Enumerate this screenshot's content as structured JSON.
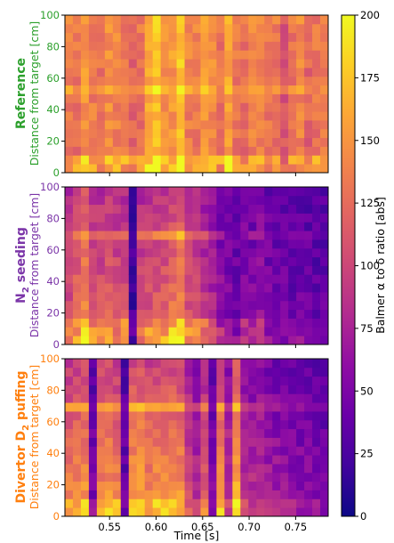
{
  "chart_data": [
    {
      "type": "heatmap",
      "panel": "reference",
      "title_bold": "Reference",
      "ylabel": "Distance from target [cm]",
      "label_color": "#2ca02c",
      "xlim": [
        0.502,
        0.785
      ],
      "ylim": [
        0,
        100
      ],
      "yticks": [
        "0",
        "20",
        "40",
        "60",
        "80",
        "100"
      ],
      "profile": {
        "base": [
          135,
          130,
          150,
          135,
          128,
          145,
          138,
          132,
          120,
          128,
          160,
          172,
          146,
          150,
          172,
          138,
          135,
          150,
          142,
          128,
          158,
          132,
          128,
          140,
          140,
          130,
          132,
          110,
          128,
          140,
          120,
          128,
          135
        ],
        "radial_gain": 0.25,
        "bright_band": [
          52,
          57,
          20
        ],
        "strike_boost": [
          0,
          12,
          40
        ]
      }
    },
    {
      "type": "heatmap",
      "panel": "n2",
      "title_bold": "N",
      "title_sub": "2",
      "title_rest": " seeding",
      "ylabel": "Distance from target [cm]",
      "label_color": "#7b35a8",
      "xlim": [
        0.502,
        0.785
      ],
      "ylim": [
        0,
        100
      ],
      "yticks": [
        "0",
        "20",
        "40",
        "60",
        "80",
        "100"
      ],
      "profile": {
        "base": [
          95,
          110,
          130,
          100,
          100,
          105,
          100,
          100,
          20,
          95,
          100,
          105,
          108,
          120,
          130,
          100,
          95,
          82,
          70,
          55,
          48,
          42,
          52,
          48,
          58,
          45,
          42,
          40,
          38,
          40,
          36,
          34,
          35
        ],
        "radial_gain": 0.35,
        "bright_band": [
          68,
          72,
          45
        ],
        "strike_boost": [
          0,
          18,
          60
        ]
      }
    },
    {
      "type": "heatmap",
      "panel": "divertor",
      "title_bold": "Divertor D",
      "title_sub": "2",
      "title_rest": " puffing",
      "ylabel": "Distance from target [cm]",
      "label_color": "#ff7f0e",
      "xlim": [
        0.502,
        0.785
      ],
      "ylim": [
        0,
        100
      ],
      "yticks": [
        "0",
        "20",
        "40",
        "60",
        "80",
        "100"
      ],
      "xticks": [
        "0.55",
        "0.60",
        "0.65",
        "0.70",
        "0.75"
      ],
      "xlabel": "Time [s]",
      "profile": {
        "base": [
          118,
          122,
          128,
          40,
          122,
          128,
          120,
          35,
          130,
          135,
          120,
          128,
          125,
          130,
          128,
          90,
          70,
          100,
          45,
          128,
          75,
          140,
          72,
          70,
          72,
          62,
          58,
          55,
          52,
          50,
          48,
          45,
          42
        ],
        "radial_gain": 0.45,
        "bright_band": [
          67,
          71,
          55
        ],
        "strike_boost": [
          0,
          10,
          35
        ]
      }
    }
  ],
  "colorbar": {
    "label": "Balmer α to δ ratio [abs]",
    "min": 0,
    "max": 200,
    "ticks": [
      "0",
      "25",
      "50",
      "75",
      "100",
      "125",
      "150",
      "175",
      "200"
    ]
  }
}
